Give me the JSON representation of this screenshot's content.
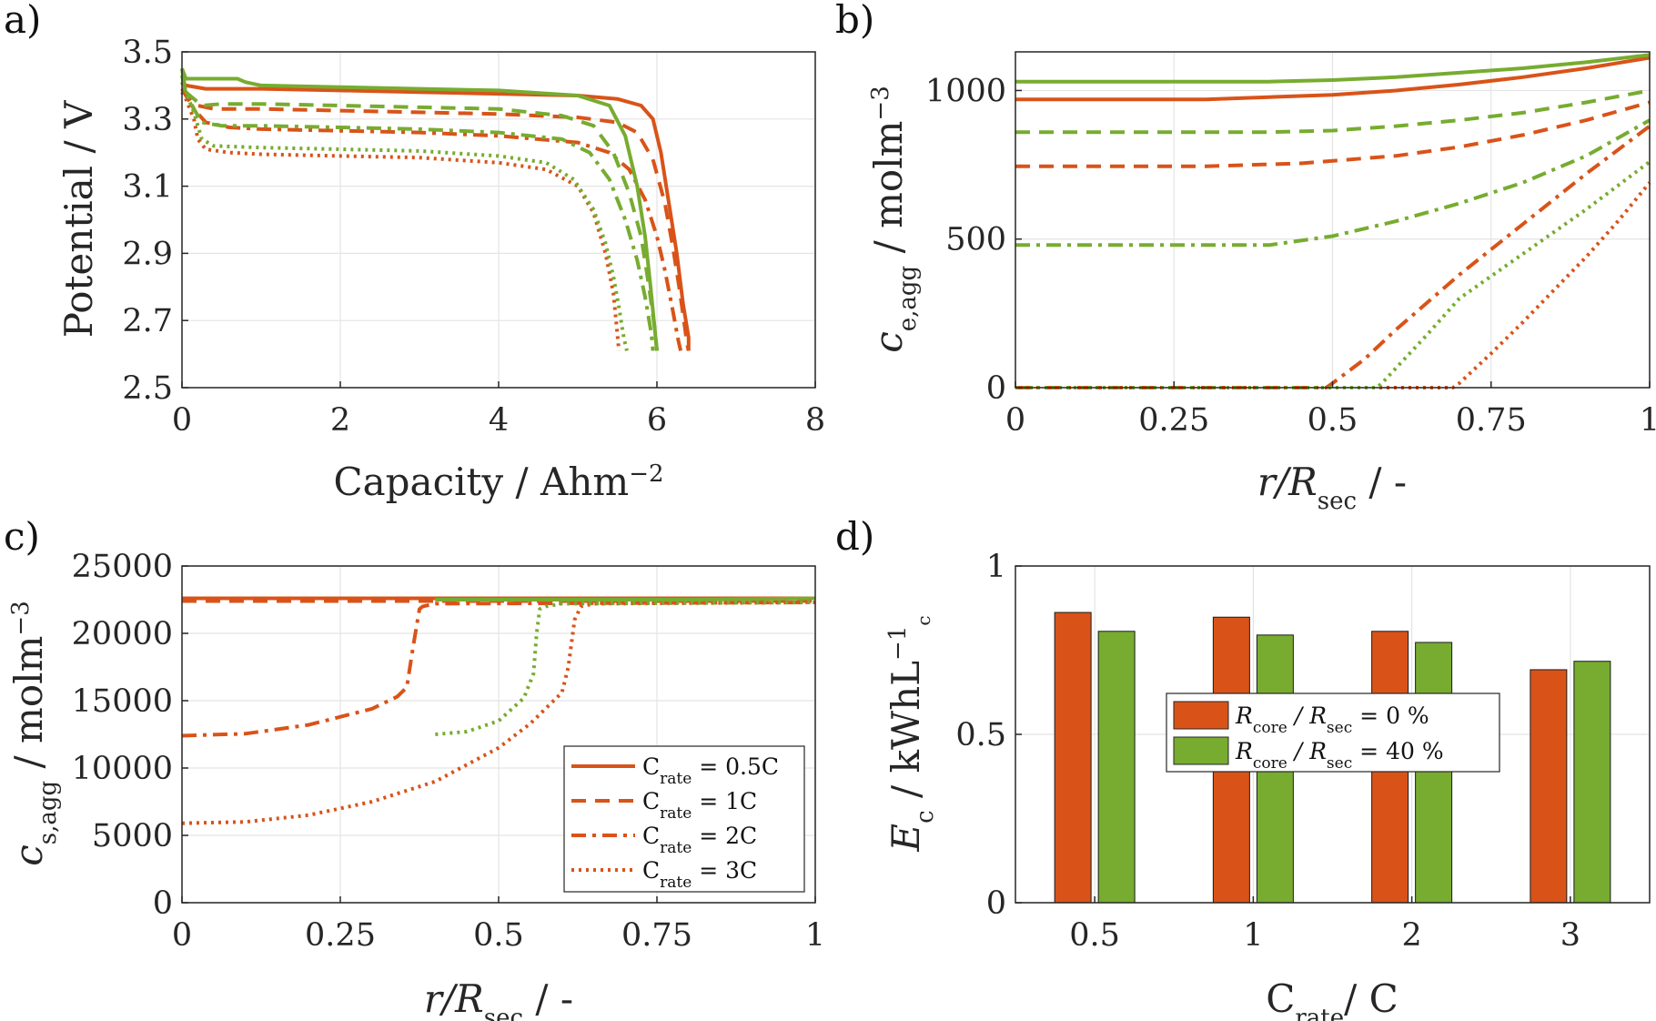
{
  "chart_data": [
    {
      "panel": "a)",
      "type": "line",
      "xlabel": "Capacity / Ahm",
      "xlabel_sup": "−2",
      "ylabel": "Potential / V",
      "xlim": [
        0,
        8
      ],
      "ylim": [
        2.5,
        3.5
      ],
      "xticks": [
        "0",
        "2",
        "4",
        "6",
        "8"
      ],
      "xtick_values": [
        0,
        2,
        4,
        6,
        8
      ],
      "yticks": [
        "2.5",
        "2.7",
        "2.9",
        "3.1",
        "3.3",
        "3.5"
      ],
      "ytick_values": [
        2.5,
        2.7,
        2.9,
        3.1,
        3.3,
        3.5
      ],
      "grid": true,
      "series": [
        {
          "group": "orange",
          "style": "solid",
          "x": [
            0,
            0.05,
            0.3,
            1,
            2,
            3,
            4,
            5,
            5.5,
            5.8,
            5.95,
            6.05,
            6.15,
            6.25,
            6.33,
            6.4,
            6.4
          ],
          "y": [
            3.41,
            3.4,
            3.39,
            3.39,
            3.385,
            3.38,
            3.375,
            3.37,
            3.36,
            3.34,
            3.3,
            3.2,
            3.05,
            2.9,
            2.75,
            2.65,
            2.61
          ]
        },
        {
          "group": "orange",
          "style": "dashed",
          "x": [
            0,
            0.05,
            0.2,
            0.4,
            1,
            2,
            3,
            4,
            5,
            5.5,
            5.75,
            5.95,
            6.1,
            6.2,
            6.28,
            6.34,
            6.38,
            6.4
          ],
          "y": [
            3.39,
            3.38,
            3.34,
            3.33,
            3.33,
            3.325,
            3.32,
            3.315,
            3.305,
            3.29,
            3.26,
            3.18,
            3.05,
            2.92,
            2.8,
            2.7,
            2.63,
            2.61
          ]
        },
        {
          "group": "orange",
          "style": "dashdot",
          "x": [
            0,
            0.05,
            0.15,
            0.3,
            0.6,
            1,
            2,
            3,
            4,
            5,
            5.4,
            5.65,
            5.85,
            6,
            6.1,
            6.2,
            6.27,
            6.3
          ],
          "y": [
            3.39,
            3.37,
            3.33,
            3.29,
            3.275,
            3.27,
            3.265,
            3.26,
            3.25,
            3.23,
            3.2,
            3.15,
            3.06,
            2.95,
            2.85,
            2.73,
            2.64,
            2.61
          ]
        },
        {
          "group": "orange",
          "style": "dotted",
          "x": [
            0,
            0.05,
            0.15,
            0.2,
            0.3,
            0.6,
            1,
            2,
            3,
            4,
            4.6,
            5,
            5.2,
            5.35,
            5.45,
            5.5,
            5.52
          ],
          "y": [
            3.38,
            3.36,
            3.3,
            3.24,
            3.21,
            3.2,
            3.195,
            3.19,
            3.185,
            3.17,
            3.15,
            3.1,
            3.02,
            2.9,
            2.78,
            2.66,
            2.61
          ]
        },
        {
          "group": "green",
          "style": "solid",
          "x": [
            0,
            0.05,
            0.2,
            0.7,
            0.8,
            1,
            2,
            3,
            4,
            5,
            5.4,
            5.6,
            5.75,
            5.85,
            5.92,
            5.97,
            6
          ],
          "y": [
            3.45,
            3.42,
            3.42,
            3.42,
            3.41,
            3.4,
            3.395,
            3.39,
            3.385,
            3.37,
            3.34,
            3.25,
            3.1,
            2.95,
            2.8,
            2.68,
            2.61
          ]
        },
        {
          "group": "green",
          "style": "dashed",
          "x": [
            0,
            0.05,
            0.15,
            0.25,
            0.5,
            1,
            2,
            3,
            4,
            4.8,
            5.2,
            5.45,
            5.65,
            5.8,
            5.9,
            5.97,
            6
          ],
          "y": [
            3.45,
            3.38,
            3.36,
            3.34,
            3.345,
            3.345,
            3.34,
            3.335,
            3.33,
            3.31,
            3.28,
            3.2,
            3.08,
            2.95,
            2.8,
            2.68,
            2.61
          ]
        },
        {
          "group": "green",
          "style": "dashdot",
          "x": [
            0,
            0.05,
            0.15,
            0.25,
            0.5,
            1,
            2,
            3,
            4,
            4.8,
            5.15,
            5.4,
            5.6,
            5.75,
            5.85,
            5.93,
            5.95
          ],
          "y": [
            3.43,
            3.38,
            3.33,
            3.29,
            3.28,
            3.28,
            3.275,
            3.27,
            3.26,
            3.24,
            3.2,
            3.12,
            3.0,
            2.88,
            2.77,
            2.66,
            2.61
          ]
        },
        {
          "group": "green",
          "style": "dotted",
          "x": [
            0,
            0.05,
            0.15,
            0.25,
            0.4,
            1,
            2,
            3,
            4,
            4.6,
            4.95,
            5.2,
            5.35,
            5.45,
            5.52,
            5.58,
            5.62
          ],
          "y": [
            3.41,
            3.38,
            3.32,
            3.24,
            3.22,
            3.215,
            3.21,
            3.205,
            3.19,
            3.17,
            3.12,
            3.03,
            2.93,
            2.83,
            2.74,
            2.65,
            2.61
          ]
        }
      ]
    },
    {
      "panel": "b)",
      "type": "line",
      "xlabel": "r/R",
      "xlabel_sub": "sec",
      "xlabel_suffix": " / -",
      "ylabel": "c",
      "ylabel_sub": "e,agg",
      "ylabel_suffix": " / molm",
      "ylabel_sup": "−3",
      "xlim": [
        0,
        1
      ],
      "ylim": [
        0,
        1130
      ],
      "xticks": [
        "0",
        "0.25",
        "0.5",
        "0.75",
        "1"
      ],
      "xtick_values": [
        0,
        0.25,
        0.5,
        0.75,
        1
      ],
      "yticks": [
        "0",
        "500",
        "1000"
      ],
      "ytick_values": [
        0,
        500,
        1000
      ],
      "grid": true,
      "series": [
        {
          "group": "orange",
          "style": "solid",
          "x": [
            0,
            0.3,
            0.5,
            0.6,
            0.7,
            0.8,
            0.9,
            1
          ],
          "y": [
            970,
            970,
            985,
            1000,
            1020,
            1045,
            1075,
            1110
          ]
        },
        {
          "group": "orange",
          "style": "dashed",
          "x": [
            0,
            0.3,
            0.45,
            0.6,
            0.7,
            0.8,
            0.9,
            1
          ],
          "y": [
            745,
            745,
            755,
            780,
            810,
            850,
            900,
            960
          ]
        },
        {
          "group": "orange",
          "style": "dashdot",
          "x": [
            0,
            0.49,
            0.5,
            0.55,
            0.6,
            0.7,
            0.8,
            0.9,
            1
          ],
          "y": [
            0,
            0,
            15,
            95,
            195,
            380,
            550,
            720,
            880
          ]
        },
        {
          "group": "orange",
          "style": "dotted",
          "x": [
            0,
            0.69,
            0.7,
            0.75,
            0.8,
            0.85,
            0.9,
            0.95,
            1
          ],
          "y": [
            0,
            0,
            15,
            115,
            220,
            330,
            440,
            560,
            690
          ]
        },
        {
          "group": "green",
          "style": "solid",
          "x": [
            0,
            0.4,
            0.5,
            0.6,
            0.7,
            0.8,
            0.9,
            1
          ],
          "y": [
            1030,
            1030,
            1035,
            1045,
            1060,
            1075,
            1095,
            1120
          ]
        },
        {
          "group": "green",
          "style": "dashed",
          "x": [
            0,
            0.4,
            0.5,
            0.6,
            0.7,
            0.8,
            0.9,
            1
          ],
          "y": [
            860,
            860,
            865,
            880,
            900,
            925,
            960,
            1000
          ]
        },
        {
          "group": "green",
          "style": "dashdot",
          "x": [
            0,
            0.4,
            0.5,
            0.6,
            0.7,
            0.8,
            0.9,
            1
          ],
          "y": [
            480,
            480,
            510,
            560,
            620,
            690,
            780,
            900
          ]
        },
        {
          "group": "green",
          "style": "dotted",
          "x": [
            0,
            0.57,
            0.58,
            0.65,
            0.7,
            0.8,
            0.9,
            1
          ],
          "y": [
            0,
            0,
            20,
            180,
            300,
            450,
            600,
            760
          ]
        }
      ]
    },
    {
      "panel": "c)",
      "type": "line",
      "xlabel": "r/R",
      "xlabel_sub": "sec",
      "xlabel_suffix": " / -",
      "ylabel": "c",
      "ylabel_sub": "s,agg",
      "ylabel_suffix": " / molm",
      "ylabel_sup": "−3",
      "xlim": [
        0,
        1
      ],
      "ylim": [
        0,
        25000
      ],
      "xticks": [
        "0",
        "0.25",
        "0.5",
        "0.75",
        "1"
      ],
      "xtick_values": [
        0,
        0.25,
        0.5,
        0.75,
        1
      ],
      "yticks": [
        "0",
        "5000",
        "10000",
        "15000",
        "20000",
        "25000"
      ],
      "ytick_values": [
        0,
        5000,
        10000,
        15000,
        20000,
        25000
      ],
      "grid": true,
      "legend": {
        "placement": "bottom-right",
        "entries": [
          {
            "style": "solid",
            "label": "C",
            "sub": "rate",
            "value": " = 0.5C"
          },
          {
            "style": "dashed",
            "label": "C",
            "sub": "rate",
            "value": " = 1C"
          },
          {
            "style": "dashdot",
            "label": "C",
            "sub": "rate",
            "value": " = 2C"
          },
          {
            "style": "dotted",
            "label": "C",
            "sub": "rate",
            "value": " = 3C"
          }
        ]
      },
      "series": [
        {
          "group": "orange",
          "style": "solid",
          "x": [
            0,
            1
          ],
          "y": [
            22600,
            22600
          ]
        },
        {
          "group": "orange",
          "style": "dashed",
          "x": [
            0,
            1
          ],
          "y": [
            22400,
            22400
          ]
        },
        {
          "group": "orange",
          "style": "dashdot",
          "x": [
            0,
            0.1,
            0.2,
            0.3,
            0.34,
            0.355,
            0.365,
            0.375,
            0.38,
            0.4,
            1
          ],
          "y": [
            12400,
            12550,
            13200,
            14400,
            15300,
            16000,
            19000,
            21800,
            22000,
            22200,
            22300
          ]
        },
        {
          "group": "orange",
          "style": "dotted",
          "x": [
            0,
            0.1,
            0.2,
            0.3,
            0.4,
            0.5,
            0.55,
            0.6,
            0.61,
            0.62,
            0.63,
            0.65,
            1
          ],
          "y": [
            5900,
            6000,
            6500,
            7500,
            9000,
            11500,
            13300,
            15600,
            17500,
            21000,
            22000,
            22200,
            22300
          ]
        },
        {
          "group": "green",
          "style": "solid",
          "x": [
            0.4,
            0.6,
            0.8,
            1
          ],
          "y": [
            22500,
            22500,
            22500,
            22600
          ]
        },
        {
          "group": "green",
          "style": "dotted",
          "x": [
            0.4,
            0.45,
            0.5,
            0.54,
            0.555,
            0.56,
            0.565,
            0.575,
            0.6,
            1
          ],
          "y": [
            12500,
            12700,
            13500,
            15200,
            17000,
            20000,
            21800,
            22000,
            22200,
            22300
          ]
        }
      ]
    },
    {
      "panel": "d)",
      "type": "bar",
      "xlabel": "C",
      "xlabel_sub": "rate",
      "xlabel_suffix": "/ C",
      "ylabel": "E",
      "ylabel_sub": "c",
      "ylabel_suffix": " / kWhL",
      "ylabel_sup": "−1",
      "ylabel_supsub": "c",
      "categories": [
        "0.5",
        "1",
        "2",
        "3"
      ],
      "ylim": [
        0,
        1
      ],
      "yticks": [
        "0",
        "0.5",
        "1"
      ],
      "ytick_values": [
        0,
        0.5,
        1
      ],
      "grid": true,
      "legend": {
        "placement": "middle-right",
        "entries": [
          {
            "group": "orange",
            "label": "R",
            "sub": "core",
            "mid": " / R",
            "sub2": "sec",
            "value": " = 0 %"
          },
          {
            "group": "green",
            "label": "R",
            "sub": "core",
            "mid": " / R",
            "sub2": "sec",
            "value": " = 40 %"
          }
        ]
      },
      "series": [
        {
          "group": "orange",
          "values": [
            0.862,
            0.848,
            0.806,
            0.692
          ]
        },
        {
          "group": "green",
          "values": [
            0.806,
            0.795,
            0.773,
            0.717
          ]
        }
      ]
    }
  ],
  "colors": {
    "orange": "#D95319",
    "green": "#77AC30",
    "axis": "#262626",
    "grid": "#e4e4e4"
  }
}
